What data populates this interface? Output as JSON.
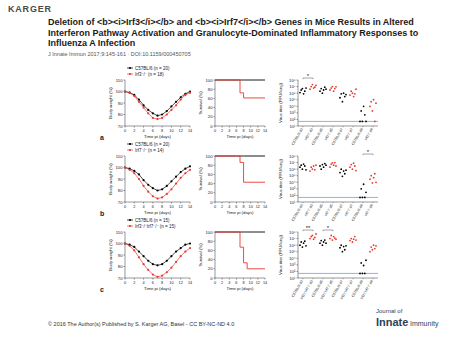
{
  "header": {
    "publisher": "KARGER",
    "title": "Deletion of <b><i>Irf3</i></b> and <b><i>Irf7</i></b> Genes in Mice Results in Altered Interferon Pathway Activation and Granulocyte-Dominated Inflammatory Responses to Influenza A Infection",
    "citation": "J Innate Immun 2017;9:145-161 · DOI:10.1159/000450705"
  },
  "panels": [
    "a",
    "b",
    "c"
  ],
  "chart_data": [
    {
      "type": "line",
      "xlabel": "Time pi (days)",
      "ylabel": "Body weight (%)",
      "x": [
        0,
        1,
        2,
        3,
        4,
        5,
        6,
        7,
        8,
        9,
        10,
        11,
        12,
        13,
        14
      ],
      "xlim": [
        0,
        14
      ],
      "xticks": [
        0,
        2,
        4,
        6,
        8,
        10,
        12,
        14
      ],
      "ylim": [
        70,
        110
      ],
      "yticks": [
        70,
        80,
        90,
        100,
        110
      ],
      "legend": "upper left",
      "series": [
        {
          "name": "C57BL/6 (n = 20)",
          "color": "#000000",
          "marker": "circle",
          "values": [
            100,
            99,
            97,
            93,
            88,
            84,
            81,
            79,
            80,
            83,
            87,
            91,
            95,
            98,
            100
          ]
        },
        {
          "name": "Irf3⁻/⁻ (n = 18)",
          "color": "#e8392f",
          "marker": "circle",
          "values": [
            100,
            99,
            96,
            91,
            86,
            81,
            77,
            76,
            77,
            80,
            84,
            88,
            93,
            97,
            99
          ]
        }
      ]
    },
    {
      "type": "line",
      "line_style": "step",
      "xlabel": "Time pi (days)",
      "ylabel": "Survival (%)",
      "x": [
        0,
        6,
        7,
        8,
        14
      ],
      "xlim": [
        0,
        14
      ],
      "xticks": [
        0,
        2,
        4,
        6,
        8,
        10,
        12,
        14
      ],
      "ylim": [
        0,
        100
      ],
      "yticks": [
        0,
        20,
        40,
        60,
        80,
        100
      ],
      "series": [
        {
          "color": "#000000",
          "values": [
            100,
            100,
            100,
            100,
            100
          ]
        },
        {
          "color": "#e8392f",
          "values": [
            100,
            100,
            72,
            61,
            61
          ]
        }
      ]
    },
    {
      "type": "strip",
      "ylabel": "Virus titer (PFU/lung)",
      "log": "y",
      "categories": [
        "C57BL/6 d3",
        "Irf3⁻/⁻ d3",
        "C57BL/6 d5",
        "Irf3⁻/⁻ d5",
        "C57BL/6 d7",
        "Irf3⁻/⁻ d7",
        "C57BL/6 d9",
        "Irf3⁻/⁻ d9"
      ],
      "colors": [
        "#000000",
        "#e8392f",
        "#000000",
        "#e8392f",
        "#000000",
        "#e8392f",
        "#000000",
        "#e8392f"
      ],
      "values": [
        [
          1200000,
          3000000,
          5000000,
          800000,
          2000000,
          6000000
        ],
        [
          4000000,
          10000000,
          20000000,
          6000000,
          8000000,
          15000000
        ],
        [
          2000000,
          5000000,
          1000000,
          3000000,
          8000000,
          4000000
        ],
        [
          3000000,
          6000000,
          10000000,
          2000000,
          5000000,
          9000000
        ],
        [
          200000,
          800000,
          50000,
          1000000,
          300000,
          600000
        ],
        [
          500000,
          2000000,
          1000000,
          300000,
          800000,
          4000000
        ],
        [
          50,
          2000,
          50,
          10000,
          500,
          50
        ],
        [
          10000,
          50000,
          2000,
          100000,
          50,
          30000
        ]
      ],
      "ylim": [
        10,
        100000000
      ],
      "yticks": [
        {
          "value": 10,
          "label": "10¹"
        },
        {
          "value": 100,
          "label": "10²"
        },
        {
          "value": 1000,
          "label": "10³"
        },
        {
          "value": 10000,
          "label": "10⁴"
        },
        {
          "value": 100000,
          "label": "10⁵"
        },
        {
          "value": 1000000,
          "label": "10⁶"
        },
        {
          "value": 10000000,
          "label": "10⁷"
        },
        {
          "value": 100000000,
          "label": "10⁸"
        }
      ],
      "detection_limit": 50,
      "annotations": [
        {
          "text": "*",
          "between": [
            0,
            1
          ]
        }
      ]
    },
    {
      "type": "line",
      "xlabel": "Time pi (days)",
      "ylabel": "Body weight (%)",
      "x": [
        0,
        1,
        2,
        3,
        4,
        5,
        6,
        7,
        8,
        9,
        10,
        11,
        12,
        13,
        14
      ],
      "xlim": [
        0,
        14
      ],
      "xticks": [
        0,
        2,
        4,
        6,
        8,
        10,
        12,
        14
      ],
      "ylim": [
        70,
        110
      ],
      "yticks": [
        70,
        80,
        90,
        100,
        110
      ],
      "legend": "upper left",
      "series": [
        {
          "name": "C57BL/6 (n = 20)",
          "color": "#000000",
          "marker": "circle",
          "values": [
            100,
            99,
            97,
            94,
            89,
            85,
            82,
            80,
            81,
            84,
            88,
            92,
            96,
            99,
            101
          ]
        },
        {
          "name": "Irf7⁻/⁻ (n = 14)",
          "color": "#e8392f",
          "marker": "circle",
          "values": [
            100,
            98,
            95,
            90,
            84,
            79,
            75,
            73,
            74,
            77,
            81,
            86,
            91,
            95,
            98
          ]
        }
      ]
    },
    {
      "type": "line",
      "line_style": "step",
      "xlabel": "Time pi (days)",
      "ylabel": "Survival (%)",
      "x": [
        0,
        6,
        7,
        8,
        14
      ],
      "xlim": [
        0,
        14
      ],
      "xticks": [
        0,
        2,
        4,
        6,
        8,
        10,
        12,
        14
      ],
      "ylim": [
        0,
        100
      ],
      "yticks": [
        0,
        20,
        40,
        60,
        80,
        100
      ],
      "series": [
        {
          "color": "#000000",
          "values": [
            100,
            100,
            100,
            100,
            100
          ]
        },
        {
          "color": "#e8392f",
          "values": [
            100,
            100,
            86,
            43,
            43
          ]
        }
      ]
    },
    {
      "type": "strip",
      "ylabel": "Virus titer (PFU/lung)",
      "log": "y",
      "categories": [
        "C57BL/6 d3",
        "Irf7⁻/⁻ d3",
        "C57BL/6 d5",
        "Irf7⁻/⁻ d5",
        "C57BL/6 d7",
        "Irf7⁻/⁻ d7",
        "C57BL/6 d9",
        "Irf7⁻/⁻ d9"
      ],
      "colors": [
        "#000000",
        "#e8392f",
        "#000000",
        "#e8392f",
        "#000000",
        "#e8392f",
        "#000000",
        "#e8392f"
      ],
      "values": [
        [
          2000000,
          4000000,
          1000000,
          6000000,
          3000000,
          800000
        ],
        [
          500000,
          2000000,
          1000000,
          3000000,
          800000,
          4000000
        ],
        [
          3000000,
          1000000,
          5000000,
          2000000,
          7000000,
          4000000
        ],
        [
          2000000,
          6000000,
          9000000,
          4000000,
          10000000,
          3000000
        ],
        [
          300000,
          1000000,
          80000,
          500000,
          200000,
          700000
        ],
        [
          2000000,
          5000000,
          1000000,
          8000000,
          3000000,
          600000
        ],
        [
          50,
          1000,
          50,
          5000,
          50,
          300
        ],
        [
          30000,
          100000,
          8000,
          50000,
          200000,
          10000
        ]
      ],
      "ylim": [
        10,
        100000000
      ],
      "yticks": [
        {
          "value": 10,
          "label": "10¹"
        },
        {
          "value": 100,
          "label": "10²"
        },
        {
          "value": 1000,
          "label": "10³"
        },
        {
          "value": 10000,
          "label": "10⁴"
        },
        {
          "value": 100000,
          "label": "10⁵"
        },
        {
          "value": 1000000,
          "label": "10⁶"
        },
        {
          "value": 10000000,
          "label": "10⁷"
        },
        {
          "value": 100000000,
          "label": "10⁸"
        }
      ],
      "detection_limit": 50,
      "annotations": [
        {
          "text": "*",
          "between": [
            6,
            7
          ]
        }
      ]
    },
    {
      "type": "line",
      "xlabel": "Time pi (days)",
      "ylabel": "Body weight (%)",
      "x": [
        0,
        1,
        2,
        3,
        4,
        5,
        6,
        7,
        8,
        9,
        10,
        11,
        12,
        13,
        14
      ],
      "xlim": [
        0,
        14
      ],
      "xticks": [
        0,
        2,
        4,
        6,
        8,
        10,
        12,
        14
      ],
      "ylim": [
        70,
        110
      ],
      "yticks": [
        70,
        80,
        90,
        100,
        110
      ],
      "legend": "upper left",
      "series": [
        {
          "name": "C57BL/6 (n = 15)",
          "color": "#000000",
          "marker": "circle",
          "values": [
            100,
            99,
            97,
            93,
            89,
            85,
            82,
            81,
            82,
            85,
            89,
            93,
            96,
            99,
            100
          ]
        },
        {
          "name": "Irf3⁻/⁻Irf7⁻/⁻ (n = 15)",
          "color": "#e8392f",
          "marker": "circle",
          "values": [
            100,
            98,
            94,
            88,
            82,
            77,
            73,
            71,
            72,
            75,
            79,
            84,
            89,
            93,
            96
          ]
        }
      ]
    },
    {
      "type": "line",
      "line_style": "step",
      "xlabel": "Time pi (days)",
      "ylabel": "Survival (%)",
      "x": [
        0,
        6,
        7,
        8,
        9,
        14
      ],
      "xlim": [
        0,
        14
      ],
      "xticks": [
        0,
        2,
        4,
        6,
        8,
        10,
        12,
        14
      ],
      "ylim": [
        0,
        100
      ],
      "yticks": [
        0,
        20,
        40,
        60,
        80,
        100
      ],
      "series": [
        {
          "color": "#000000",
          "values": [
            100,
            100,
            100,
            100,
            100,
            100
          ]
        },
        {
          "color": "#e8392f",
          "values": [
            100,
            100,
            67,
            33,
            20,
            20
          ]
        }
      ]
    },
    {
      "type": "strip",
      "ylabel": "Virus titer (PFU/lung)",
      "log": "y",
      "categories": [
        "C57BL/6 d3",
        "Irf3⁻/⁻Irf7⁻/⁻ d3",
        "C57BL/6 d5",
        "Irf3⁻/⁻Irf7⁻/⁻ d5",
        "C57BL/6 d7",
        "Irf3⁻/⁻Irf7⁻/⁻ d7",
        "C57BL/6 d9",
        "Irf3⁻/⁻Irf7⁻/⁻ d9"
      ],
      "colors": [
        "#000000",
        "#e8392f",
        "#000000",
        "#e8392f",
        "#000000",
        "#e8392f",
        "#000000",
        "#e8392f"
      ],
      "values": [
        [
          1000000,
          3000000,
          500000,
          2000000,
          4000000,
          800000
        ],
        [
          10000000,
          20000000,
          30000000,
          8000000,
          15000000,
          50000000
        ],
        [
          2000000,
          5000000,
          1000000,
          3000000,
          6000000,
          2000000
        ],
        [
          10000000,
          30000000,
          6000000,
          20000000,
          12000000,
          8000000
        ],
        [
          400000,
          1000000,
          100000,
          600000,
          200000,
          800000
        ],
        [
          5000000,
          10000000,
          3000000,
          8000000,
          20000000,
          6000000
        ],
        [
          50,
          2000,
          50,
          800,
          50,
          5000
        ],
        [
          100000,
          500000,
          200000,
          1000000,
          300000,
          800000
        ]
      ],
      "ylim": [
        10,
        100000000
      ],
      "yticks": [
        {
          "value": 10,
          "label": "10¹"
        },
        {
          "value": 100,
          "label": "10²"
        },
        {
          "value": 1000,
          "label": "10³"
        },
        {
          "value": 10000,
          "label": "10⁴"
        },
        {
          "value": 100000,
          "label": "10⁵"
        },
        {
          "value": 1000000,
          "label": "10⁶"
        },
        {
          "value": 10000000,
          "label": "10⁷"
        },
        {
          "value": 100000000,
          "label": "10⁸"
        }
      ],
      "detection_limit": 50,
      "annotations": [
        {
          "text": "**",
          "between": [
            0,
            1
          ]
        },
        {
          "text": "*",
          "between": [
            2,
            3
          ]
        }
      ]
    }
  ],
  "footer": {
    "copyright": "© 2016 The Author(s) Published by S. Karger AG, Basel - CC BY-NC-ND 4.0",
    "journal": [
      "Journal of",
      "Innate",
      "Immunity"
    ]
  }
}
